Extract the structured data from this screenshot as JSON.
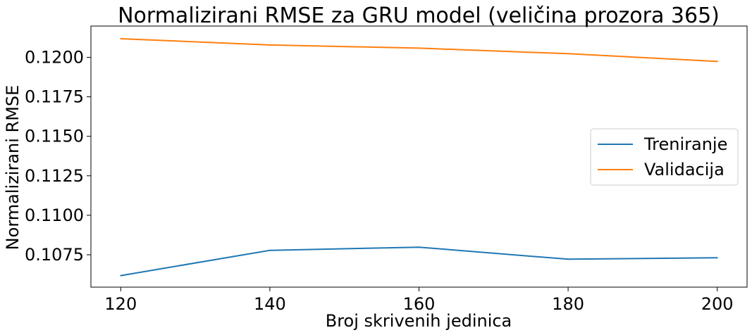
{
  "chart_data": {
    "type": "line",
    "title": "Normalizirani RMSE za GRU model (veličina prozora 365)",
    "xlabel": "Broj skrivenih jedinica",
    "ylabel": "Normalizirani RMSE",
    "x": [
      120,
      140,
      160,
      180,
      200
    ],
    "xticks": [
      120,
      140,
      160,
      180,
      200
    ],
    "xtick_labels": [
      "120",
      "140",
      "160",
      "180",
      "200"
    ],
    "yticks": [
      0.1075,
      0.11,
      0.1125,
      0.115,
      0.1175,
      0.12
    ],
    "ytick_labels": [
      "0.1075",
      "0.1100",
      "0.1125",
      "0.1150",
      "0.1175",
      "0.1200"
    ],
    "xlim": [
      116,
      204
    ],
    "ylim": [
      0.10545,
      0.12198
    ],
    "grid": false,
    "legend_position": "center-right",
    "series": [
      {
        "name": "Treniranje",
        "color": "#1f77b4",
        "values": [
          0.10618,
          0.10778,
          0.10798,
          0.10722,
          0.10731
        ]
      },
      {
        "name": "Validacija",
        "color": "#ff7f0e",
        "values": [
          0.12118,
          0.12078,
          0.12058,
          0.12023,
          0.11974
        ]
      }
    ]
  }
}
